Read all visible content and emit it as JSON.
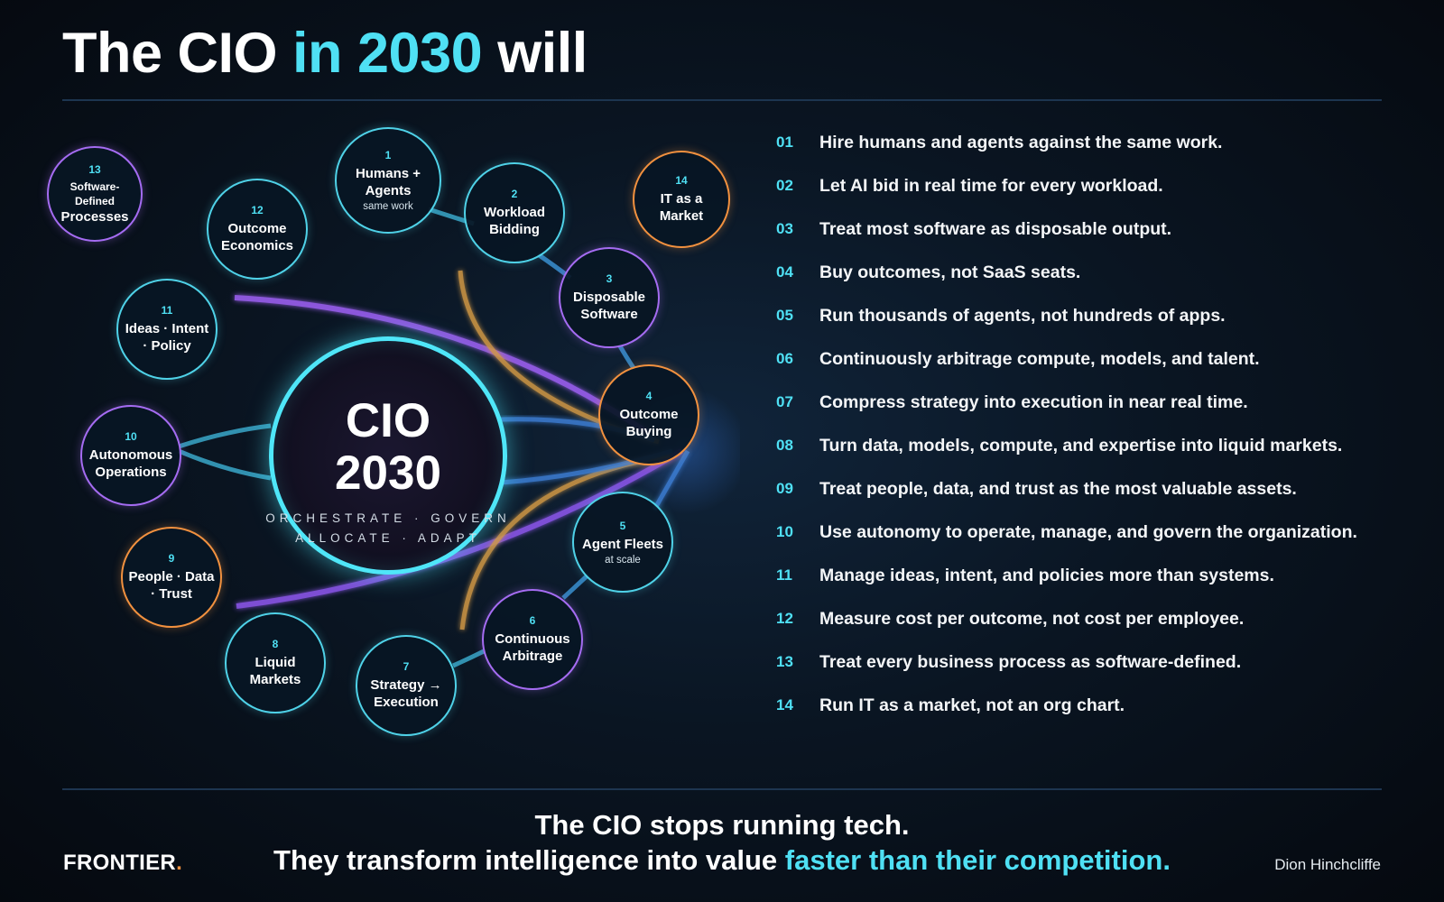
{
  "header": {
    "title_start": "The CIO",
    "title_accent": "in 2030",
    "title_end": "will"
  },
  "center": {
    "line1": "CIO",
    "line2": "2030",
    "sub1": "ORCHESTRATE · GOVERN",
    "sub2": "ALLOCATE · ADAPT"
  },
  "colors": {
    "cyan": "#4fd2e8",
    "purple": "#a56cf2",
    "orange": "#f2913f",
    "accent": "#4fe0f4"
  },
  "nodes": [
    {
      "num": "1",
      "label": "Humans + Agents",
      "sub": "same work",
      "color": "cyan"
    },
    {
      "num": "2",
      "label": "Workload Bidding",
      "color": "cyan"
    },
    {
      "num": "3",
      "label": "Disposable Software",
      "color": "purple"
    },
    {
      "num": "4",
      "label": "Outcome Buying",
      "color": "orange"
    },
    {
      "num": "5",
      "label": "Agent Fleets",
      "sub": "at scale",
      "color": "cyan"
    },
    {
      "num": "6",
      "label": "Continuous Arbitrage",
      "color": "purple"
    },
    {
      "num": "7",
      "label": "Strategy → Execution",
      "color": "cyan"
    },
    {
      "num": "8",
      "label": "Liquid Markets",
      "color": "cyan"
    },
    {
      "num": "9",
      "label": "People · Data · Trust",
      "color": "orange"
    },
    {
      "num": "10",
      "label": "Autonomous Operations",
      "color": "purple"
    },
    {
      "num": "11",
      "label": "Ideas · Intent · Policy",
      "color": "cyan"
    },
    {
      "num": "12",
      "label": "Outcome Economics",
      "color": "cyan"
    },
    {
      "num": "13",
      "label_line1": "Software-Defined",
      "label_line2": "Processes",
      "color": "purple"
    },
    {
      "num": "14",
      "label": "IT as a Market",
      "color": "orange"
    }
  ],
  "list": [
    {
      "num": "01",
      "text": "Hire humans and agents against the same work."
    },
    {
      "num": "02",
      "text": "Let AI bid in real time for every workload."
    },
    {
      "num": "03",
      "text": "Treat most software as disposable output."
    },
    {
      "num": "04",
      "text": "Buy outcomes, not SaaS seats."
    },
    {
      "num": "05",
      "text": "Run thousands of agents, not hundreds of apps."
    },
    {
      "num": "06",
      "text": "Continuously arbitrage compute, models, and talent."
    },
    {
      "num": "07",
      "text": "Compress strategy into execution in near real time."
    },
    {
      "num": "08",
      "text": "Turn data, models, compute, and expertise into liquid markets."
    },
    {
      "num": "09",
      "text": "Treat people, data, and trust as the most valuable assets."
    },
    {
      "num": "10",
      "text": "Use autonomy to operate, manage, and govern the organization."
    },
    {
      "num": "11",
      "text": "Manage ideas, intent, and policies more than systems."
    },
    {
      "num": "12",
      "text": "Measure cost per outcome, not cost per employee."
    },
    {
      "num": "13",
      "text": "Treat every business process as software-defined."
    },
    {
      "num": "14",
      "text": "Run IT as a market, not an org chart."
    }
  ],
  "footer": {
    "line1": "The CIO stops running tech.",
    "line2_start": "They transform intelligence into value",
    "line2_accent": "faster than their competition.",
    "brand": "FRONTIER",
    "brand_dot": ".",
    "author": "Dion Hinchcliffe"
  }
}
